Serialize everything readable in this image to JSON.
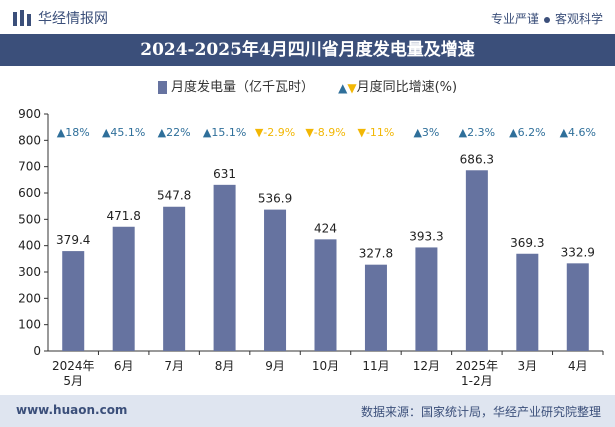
{
  "header": {
    "brand": "华经情报网",
    "slogan_left": "专业严谨",
    "slogan_right": "客观科学"
  },
  "footer": {
    "site": "www.huaon.com",
    "source": "数据来源：国家统计局，华经产业研究院整理"
  },
  "colors": {
    "bar": "#6673a0",
    "up": "#2f6f9a",
    "down": "#f2b705",
    "title_band": "#3b4f7a"
  },
  "chart_data": {
    "type": "bar",
    "title": "2024-2025年4月四川省月度发电量及增速",
    "legend_bar": "月度发电量（亿千瓦时）",
    "legend_line": "月度同比增速(%)",
    "categories": [
      "2024年\n5月",
      "6月",
      "7月",
      "8月",
      "9月",
      "10月",
      "11月",
      "12月",
      "2025年\n1-2月",
      "3月",
      "4月"
    ],
    "series": [
      {
        "name": "月度发电量（亿千瓦时）",
        "values": [
          379.4,
          471.8,
          547.8,
          631,
          536.9,
          424,
          327.8,
          393.3,
          686.3,
          369.3,
          332.9
        ]
      },
      {
        "name": "月度同比增速(%)",
        "values": [
          18,
          45.1,
          22,
          15.1,
          -2.9,
          -8.9,
          -11,
          3,
          2.3,
          6.2,
          4.6
        ]
      }
    ],
    "growth_labels": [
      "18%",
      "45.1%",
      "22%",
      "15.1%",
      "-2.9%",
      "-8.9%",
      "-11%",
      "3%",
      "2.3%",
      "6.2%",
      "4.6%"
    ],
    "ylim": [
      0,
      900
    ],
    "yticks": [
      0,
      100,
      200,
      300,
      400,
      500,
      600,
      700,
      800,
      900
    ],
    "grid": false,
    "legend_position": "top-center"
  }
}
